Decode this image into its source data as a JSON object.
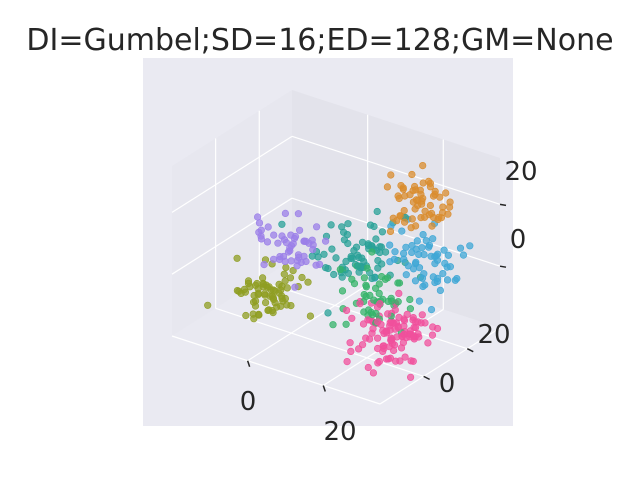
{
  "chart_data": {
    "type": "scatter",
    "projection": "3d",
    "title": "DI=Gumbel;SD=16;ED=128;GM=None",
    "xlabel": "",
    "ylabel": "",
    "zlabel": "",
    "x_ticks": [
      "0",
      "20"
    ],
    "y_ticks": [
      "0",
      "20"
    ],
    "z_ticks": [
      "0",
      "20"
    ],
    "grid": true,
    "legend": "none",
    "background_color": "#eaeaf2",
    "series": [
      {
        "color": "#d98c2e",
        "points": 60,
        "center": [
          22,
          20,
          22
        ],
        "spread": 4
      },
      {
        "color": "#3fa7d6",
        "points": 60,
        "center": [
          25,
          18,
          6
        ],
        "spread": 5
      },
      {
        "color": "#2aa198",
        "points": 70,
        "center": [
          12,
          12,
          4
        ],
        "spread": 5
      },
      {
        "color": "#9b7fe8",
        "points": 50,
        "center": [
          -2,
          3,
          6
        ],
        "spread": 4
      },
      {
        "color": "#8f9e22",
        "points": 70,
        "center": [
          -6,
          -2,
          -8
        ],
        "spread": 4
      },
      {
        "color": "#36b36a",
        "points": 50,
        "center": [
          18,
          8,
          -4
        ],
        "spread": 4
      },
      {
        "color": "#f0509c",
        "points": 110,
        "center": [
          24,
          4,
          -12
        ],
        "spread": 5
      }
    ]
  }
}
